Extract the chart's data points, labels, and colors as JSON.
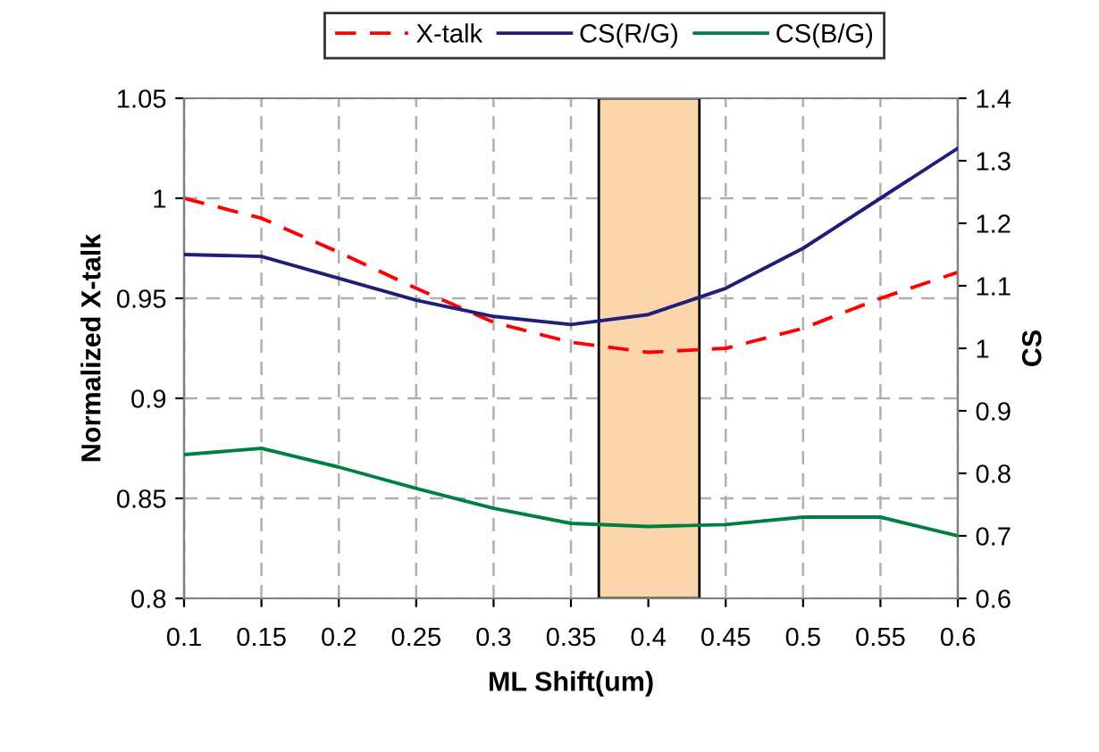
{
  "chart_data": {
    "type": "line",
    "xlabel": "ML Shift(um)",
    "ylabel": "Normalized X-talk",
    "y2label": "CS",
    "x": [
      0.1,
      0.15,
      0.2,
      0.25,
      0.3,
      0.35,
      0.4,
      0.45,
      0.5,
      0.55,
      0.6
    ],
    "series": [
      {
        "name": "X-talk",
        "color": "#ff0000",
        "line_style": "dashed",
        "values": [
          1.0,
          0.99,
          0.973,
          0.955,
          0.938,
          0.928,
          0.923,
          0.925,
          0.935,
          0.95,
          0.963
        ]
      },
      {
        "name": "CS(R/G)",
        "color": "#1f1f7a",
        "axis": "y2",
        "values": [
          1.15,
          1.147,
          1.112,
          1.077,
          1.051,
          1.038,
          1.054,
          1.096,
          1.16,
          1.24,
          1.32
        ]
      },
      {
        "name": "CS(B/G)",
        "color": "#008040",
        "axis": "y2",
        "values": [
          0.83,
          0.84,
          0.81,
          0.776,
          0.744,
          0.72,
          0.715,
          0.718,
          0.73,
          0.73,
          0.7
        ]
      }
    ],
    "xlim": [
      0.1,
      0.6
    ],
    "xticks": [
      0.1,
      0.15,
      0.2,
      0.25,
      0.3,
      0.35,
      0.4,
      0.45,
      0.5,
      0.55,
      0.6
    ],
    "ylim": [
      0.8,
      1.05
    ],
    "yticks": [
      0.8,
      0.85,
      0.9,
      0.95,
      1,
      1.05
    ],
    "y2lim": [
      0.6,
      1.4
    ],
    "y2ticks": [
      0.6,
      0.7,
      0.8,
      0.9,
      1,
      1.1,
      1.2,
      1.3,
      1.4
    ],
    "bands": [
      {
        "axis": "x",
        "from": 0.368,
        "to": 0.433,
        "color": "#fdd5ad"
      }
    ],
    "grid": true,
    "legend": "top",
    "marker": "none"
  }
}
